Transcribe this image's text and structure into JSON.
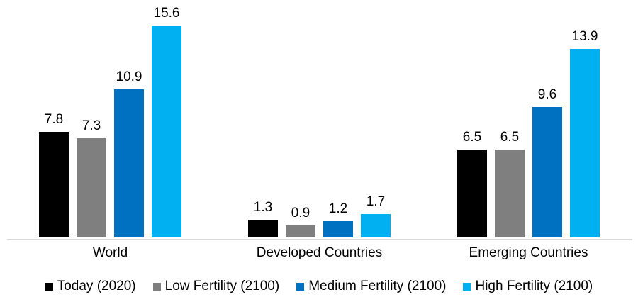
{
  "chart_data": {
    "type": "bar",
    "title": "",
    "xlabel": "",
    "ylabel": "",
    "ylim": [
      0,
      16
    ],
    "grid": false,
    "legend_position": "bottom",
    "value_labels_shown": true,
    "axis_line_color": "#d9d9d9",
    "categories": [
      "World",
      "Developed Countries",
      "Emerging Countries"
    ],
    "series": [
      {
        "name": "Today (2020)",
        "color": "#000000",
        "values": [
          7.8,
          1.3,
          6.5
        ]
      },
      {
        "name": "Low Fertility (2100)",
        "color": "#7f7f7f",
        "values": [
          7.3,
          0.9,
          6.5
        ]
      },
      {
        "name": "Medium Fertility (2100)",
        "color": "#0070c0",
        "values": [
          10.9,
          1.2,
          9.6
        ]
      },
      {
        "name": "High Fertility (2100)",
        "color": "#00b0f0",
        "values": [
          15.6,
          1.7,
          13.9
        ]
      }
    ]
  },
  "layout_note": ""
}
